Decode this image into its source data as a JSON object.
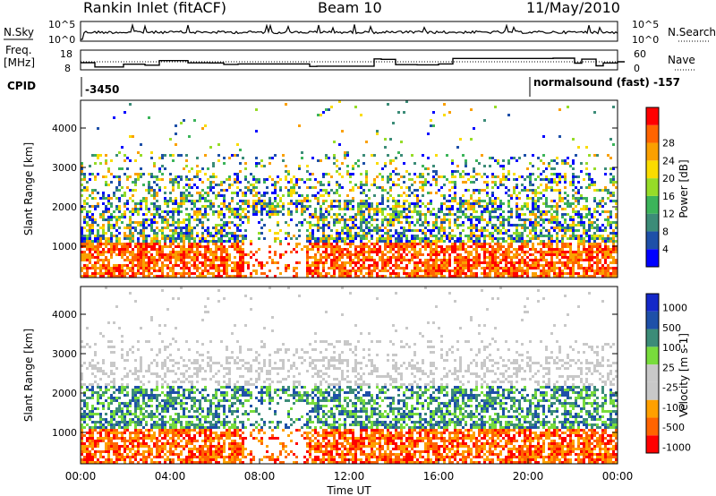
{
  "header": {
    "station": "Rankin Inlet (fitACF)",
    "beam": "Beam 10",
    "date": "11/May/2010"
  },
  "nsky_panel": {
    "left_label": "N.Sky",
    "right_label": "N.Search",
    "tick_top": "10^5",
    "tick_bottom": "10^0"
  },
  "freq_panel": {
    "left_label_1": "Freq.",
    "left_label_2": "[MHz]",
    "left_tick_top": "18",
    "left_tick_bottom": "8",
    "right_label": "Nave",
    "right_tick_top": "60",
    "right_tick_bottom": "0"
  },
  "cpid_panel": {
    "label": "CPID",
    "seg1": "-3450",
    "seg2": "normalsound (fast) -157"
  },
  "colors": {
    "power_scale": [
      "#0000ff",
      "#1e50a8",
      "#3c8c78",
      "#3cb45a",
      "#96dc28",
      "#fadc00",
      "#faa000",
      "#ff6400",
      "#ff0000"
    ],
    "velocity_scale": [
      "#ff0000",
      "#ff6400",
      "#ffa000",
      "#c8c8c8",
      "#c8c8c8",
      "#78dc3c",
      "#3c8c78",
      "#1e50a8",
      "#1428c8"
    ]
  },
  "chart_data": [
    {
      "type": "heatmap",
      "name": "power",
      "ylabel": "Slant Range [km]",
      "yticks": [
        "1000",
        "2000",
        "3000",
        "4000"
      ],
      "colorbar_label": "Power [dB]",
      "colorbar_ticks": [
        "4",
        "8",
        "12",
        "16",
        "20",
        "24",
        "28"
      ]
    },
    {
      "type": "heatmap",
      "name": "velocity",
      "ylabel": "Slant Range [km]",
      "yticks": [
        "1000",
        "2000",
        "3000",
        "4000"
      ],
      "colorbar_label": "Velocity [m s-1]",
      "colorbar_ticks": [
        "1000",
        "500",
        "100",
        "25",
        "-25",
        "-100",
        "-500",
        "-1000"
      ],
      "xlabel": "Time UT",
      "xticks": [
        "00:00",
        "04:00",
        "08:00",
        "12:00",
        "16:00",
        "20:00",
        "00:00"
      ]
    }
  ]
}
